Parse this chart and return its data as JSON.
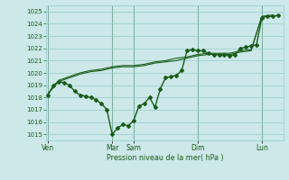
{
  "xlabel": "Pression niveau de la mer( hPa )",
  "ylim": [
    1014.5,
    1025.5
  ],
  "yticks": [
    1015,
    1016,
    1017,
    1018,
    1019,
    1020,
    1021,
    1022,
    1023,
    1024,
    1025
  ],
  "bg_color": "#cce8e8",
  "grid_color": "#99cccc",
  "line_color": "#1a5c1a",
  "tick_color": "#1a5c1a",
  "label_color": "#1a5c1a",
  "vline_color": "#336633",
  "day_labels": [
    "Ven",
    "Mar",
    "Sam",
    "Dim",
    "Lun"
  ],
  "day_positions": [
    0,
    36,
    48,
    84,
    120
  ],
  "xlim": [
    -1,
    132
  ],
  "series": [
    {
      "x": [
        0,
        3,
        6,
        9,
        12,
        15,
        18,
        21,
        24,
        27,
        30,
        33,
        36,
        39,
        42,
        45,
        48,
        51,
        54,
        57,
        60,
        63,
        66,
        69,
        72,
        75,
        78,
        81,
        84,
        87,
        90,
        93,
        96,
        99,
        102,
        105,
        108,
        111,
        114,
        117,
        120,
        123,
        126,
        129
      ],
      "y": [
        1018.2,
        1019.0,
        1019.3,
        1019.2,
        1019.0,
        1018.5,
        1018.2,
        1018.1,
        1018.0,
        1017.8,
        1017.5,
        1017.0,
        1015.0,
        1015.5,
        1015.8,
        1015.7,
        1016.1,
        1017.3,
        1017.5,
        1018.0,
        1017.2,
        1018.7,
        1019.6,
        1019.7,
        1019.8,
        1020.2,
        1021.8,
        1021.9,
        1021.8,
        1021.8,
        1021.6,
        1021.5,
        1021.5,
        1021.5,
        1021.4,
        1021.5,
        1022.0,
        1022.1,
        1022.2,
        1022.3,
        1024.5,
        1024.6,
        1024.6,
        1024.7
      ],
      "marker": "D",
      "markersize": 2.0,
      "linewidth": 1.0
    },
    {
      "x": [
        0,
        6,
        12,
        18,
        24,
        30,
        36,
        42,
        48,
        54,
        60,
        66,
        72,
        78,
        84,
        90,
        96,
        102,
        108,
        114,
        120,
        126
      ],
      "y": [
        1018.3,
        1019.3,
        1019.6,
        1019.9,
        1020.1,
        1020.2,
        1020.4,
        1020.5,
        1020.5,
        1020.6,
        1020.8,
        1020.9,
        1021.0,
        1021.2,
        1021.4,
        1021.5,
        1021.5,
        1021.5,
        1021.7,
        1021.8,
        1024.6,
        1024.7
      ],
      "marker": null,
      "markersize": 0,
      "linewidth": 0.8
    },
    {
      "x": [
        0,
        6,
        12,
        18,
        24,
        30,
        36,
        42,
        48,
        54,
        60,
        66,
        72,
        78,
        84,
        90,
        96,
        102,
        108,
        114,
        120,
        126
      ],
      "y": [
        1018.3,
        1019.4,
        1019.7,
        1020.0,
        1020.2,
        1020.3,
        1020.5,
        1020.6,
        1020.6,
        1020.7,
        1020.9,
        1021.0,
        1021.2,
        1021.3,
        1021.5,
        1021.6,
        1021.6,
        1021.6,
        1021.8,
        1021.9,
        1024.6,
        1024.7
      ],
      "marker": null,
      "markersize": 0,
      "linewidth": 0.8
    }
  ]
}
